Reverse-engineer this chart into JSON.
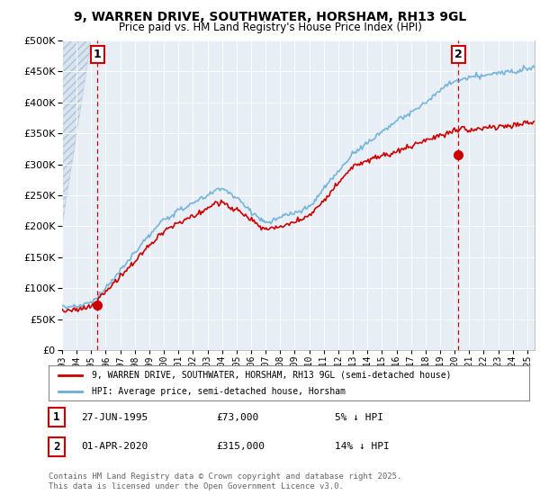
{
  "title": "9, WARREN DRIVE, SOUTHWATER, HORSHAM, RH13 9GL",
  "subtitle": "Price paid vs. HM Land Registry's House Price Index (HPI)",
  "legend_line1": "9, WARREN DRIVE, SOUTHWATER, HORSHAM, RH13 9GL (semi-detached house)",
  "legend_line2": "HPI: Average price, semi-detached house, Horsham",
  "annotation1_date": "27-JUN-1995",
  "annotation1_price": "£73,000",
  "annotation1_hpi": "5% ↓ HPI",
  "annotation2_date": "01-APR-2020",
  "annotation2_price": "£315,000",
  "annotation2_hpi": "14% ↓ HPI",
  "footer": "Contains HM Land Registry data © Crown copyright and database right 2025.\nThis data is licensed under the Open Government Licence v3.0.",
  "hpi_color": "#6aaed6",
  "price_color": "#cc0000",
  "marker_color": "#cc0000",
  "dashed_line_color": "#cc0000",
  "annotation_box_color": "#cc0000",
  "ylim": [
    0,
    500000
  ],
  "yticks": [
    0,
    50000,
    100000,
    150000,
    200000,
    250000,
    300000,
    350000,
    400000,
    450000,
    500000
  ],
  "background_color": "#ffffff",
  "plot_bg_color": "#e8eef5"
}
